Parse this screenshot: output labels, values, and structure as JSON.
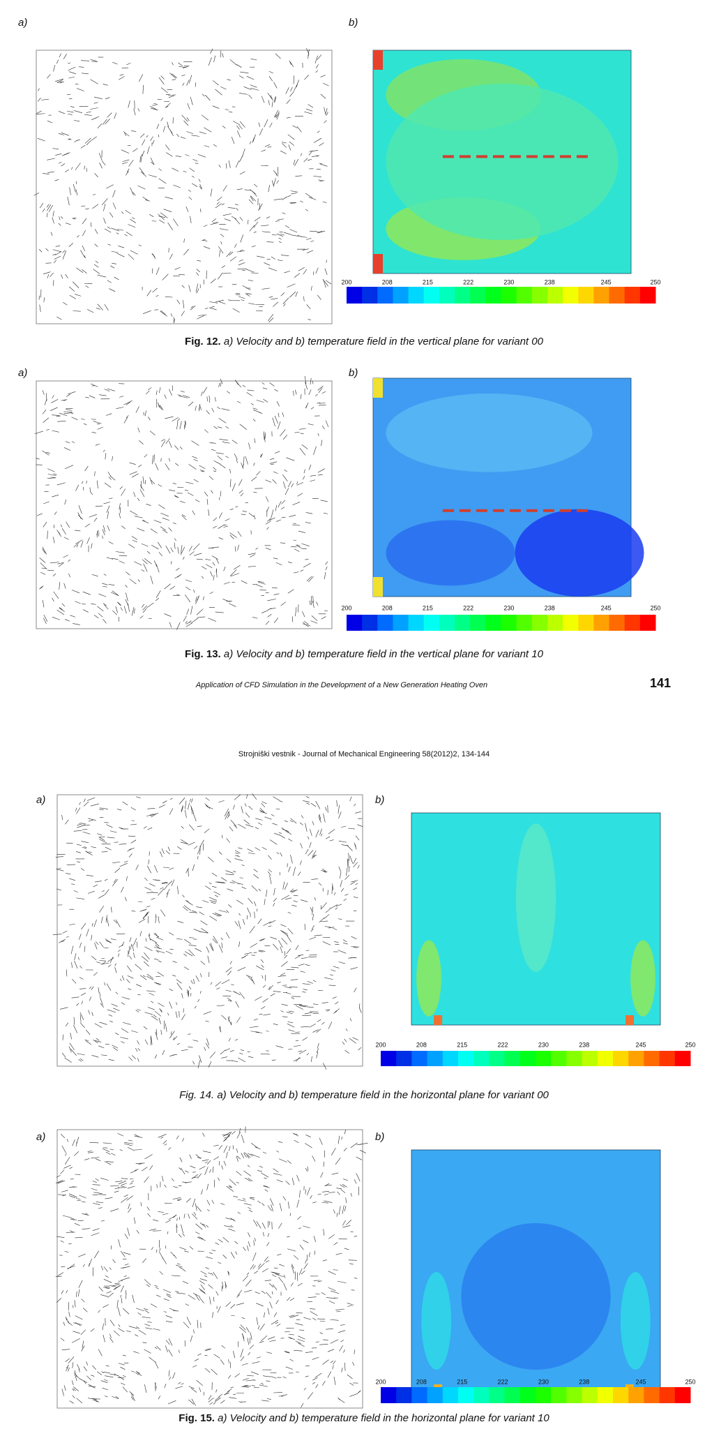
{
  "header": {
    "journal": "Strojniški vestnik - Journal of Mechanical Engineering 58(2012)2, 134-144"
  },
  "footer": {
    "running_title": "Application of CFD Simulation in the Development of a New Generation Heating Oven",
    "page_number": "141"
  },
  "figures": [
    {
      "panel_a": "a)",
      "panel_b": "b)",
      "colorbar_ticks": [
        "200",
        "208",
        "215",
        "222",
        "230",
        "238",
        "245",
        "250"
      ],
      "caption": {
        "label": "Fig. 12.",
        "text": "a) Velocity and b) temperature field in the vertical plane for variant 00"
      }
    },
    {
      "panel_a": "a)",
      "panel_b": "b)",
      "colorbar_ticks": [
        "200",
        "208",
        "215",
        "222",
        "230",
        "238",
        "245",
        "250"
      ],
      "caption": {
        "label": "Fig. 13.",
        "text": "a) Velocity and b) temperature field in the vertical plane for variant 10"
      }
    },
    {
      "panel_a": "a)",
      "panel_b": "b)",
      "colorbar_ticks": [
        "200",
        "208",
        "215",
        "222",
        "230",
        "238",
        "245",
        "250"
      ],
      "caption": {
        "label": "Fig. 14.",
        "text": "a) Velocity and b) temperature field in the horizontal plane for variant 00"
      }
    },
    {
      "panel_a": "a)",
      "panel_b": "b)",
      "colorbar_ticks": [
        "200",
        "208",
        "215",
        "222",
        "230",
        "238",
        "245",
        "250"
      ],
      "caption": {
        "label": "Fig. 15.",
        "text": "a) Velocity and b) temperature field in the horizontal plane for variant 10"
      }
    }
  ]
}
